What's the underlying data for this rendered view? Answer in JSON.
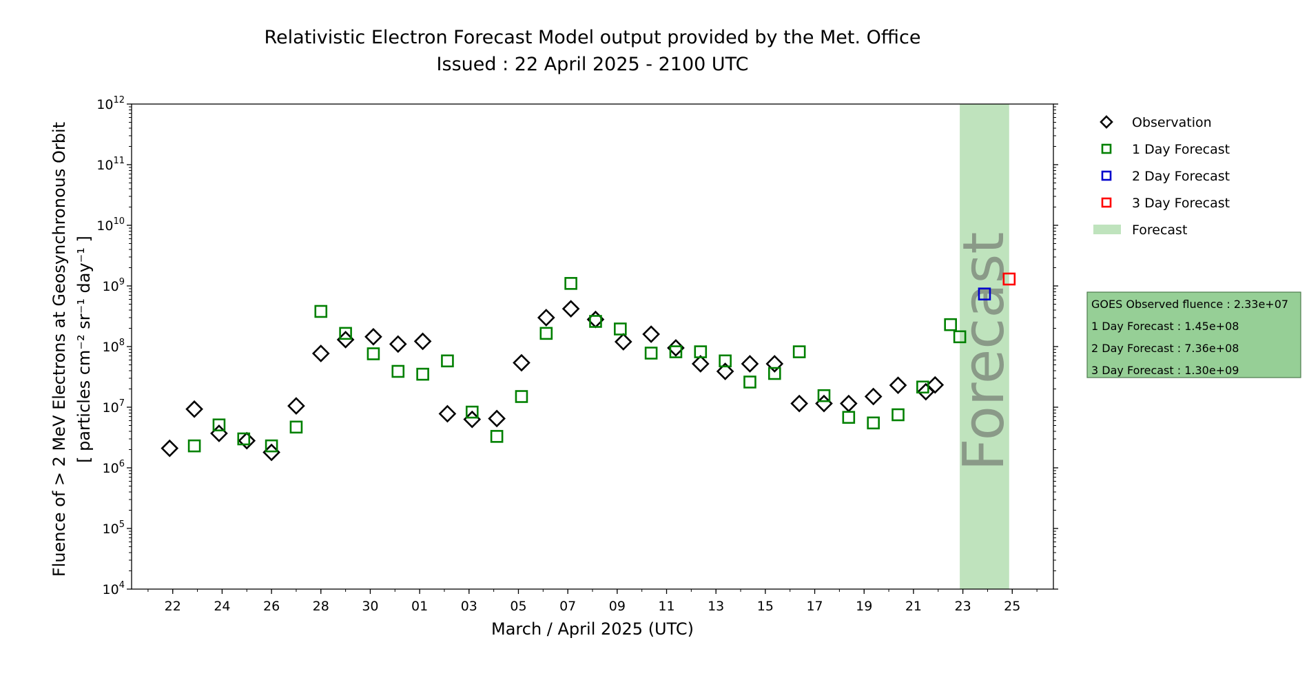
{
  "chart_data": {
    "type": "scatter",
    "title": "Relativistic Electron Forecast Model output provided by the Met. Office",
    "subtitle": "Issued : 22 April 2025 - 2100 UTC",
    "xlabel": "March / April 2025 (UTC)",
    "ylabel_line1": "Fluence of > 2 MeV Electrons at Geosynchronous Orbit",
    "ylabel_line2": "[ particles cm⁻² sr⁻¹ day⁻¹ ]",
    "yscale": "log",
    "ylim": [
      10000,
      1000000000000
    ],
    "xlim": [
      "2025-03-20T08:00",
      "2025-04-26T16:00"
    ],
    "y_ticks": [
      {
        "value": 10000,
        "base": "10",
        "exp": "4"
      },
      {
        "value": 100000,
        "base": "10",
        "exp": "5"
      },
      {
        "value": 1000000,
        "base": "10",
        "exp": "6"
      },
      {
        "value": 10000000,
        "base": "10",
        "exp": "7"
      },
      {
        "value": 100000000,
        "base": "10",
        "exp": "8"
      },
      {
        "value": 1000000000,
        "base": "10",
        "exp": "9"
      },
      {
        "value": 10000000000,
        "base": "10",
        "exp": "10"
      },
      {
        "value": 100000000000,
        "base": "10",
        "exp": "11"
      },
      {
        "value": 1000000000000,
        "base": "10",
        "exp": "12"
      }
    ],
    "x_ticks": [
      {
        "date": "2025-03-22",
        "label": "22"
      },
      {
        "date": "2025-03-24",
        "label": "24"
      },
      {
        "date": "2025-03-26",
        "label": "26"
      },
      {
        "date": "2025-03-28",
        "label": "28"
      },
      {
        "date": "2025-03-30",
        "label": "30"
      },
      {
        "date": "2025-04-01",
        "label": "01"
      },
      {
        "date": "2025-04-03",
        "label": "03"
      },
      {
        "date": "2025-04-05",
        "label": "05"
      },
      {
        "date": "2025-04-07",
        "label": "07"
      },
      {
        "date": "2025-04-09",
        "label": "09"
      },
      {
        "date": "2025-04-11",
        "label": "11"
      },
      {
        "date": "2025-04-13",
        "label": "13"
      },
      {
        "date": "2025-04-15",
        "label": "15"
      },
      {
        "date": "2025-04-17",
        "label": "17"
      },
      {
        "date": "2025-04-19",
        "label": "19"
      },
      {
        "date": "2025-04-21",
        "label": "21"
      },
      {
        "date": "2025-04-23",
        "label": "23"
      },
      {
        "date": "2025-04-25",
        "label": "25"
      }
    ],
    "forecast_band": {
      "start": "2025-04-22T21:00",
      "end": "2025-04-24T21:00",
      "label": "Forecast",
      "color": "#bfe3bd"
    },
    "series": [
      {
        "name": "Observation",
        "marker": "diamond",
        "color": "#000000",
        "points": [
          {
            "x": "2025-03-21T21:00",
            "y": 2100000
          },
          {
            "x": "2025-03-22T21:00",
            "y": 9300000
          },
          {
            "x": "2025-03-23T21:00",
            "y": 3700000
          },
          {
            "x": "2025-03-25T00:00",
            "y": 2800000
          },
          {
            "x": "2025-03-26T00:00",
            "y": 1800000
          },
          {
            "x": "2025-03-27T00:00",
            "y": 10500000
          },
          {
            "x": "2025-03-28T00:00",
            "y": 77000000
          },
          {
            "x": "2025-03-29T00:00",
            "y": 130000000
          },
          {
            "x": "2025-03-30T03:00",
            "y": 145000000
          },
          {
            "x": "2025-03-31T03:00",
            "y": 110000000
          },
          {
            "x": "2025-04-01T03:00",
            "y": 122000000
          },
          {
            "x": "2025-04-02T03:00",
            "y": 7800000
          },
          {
            "x": "2025-04-03T03:00",
            "y": 6300000
          },
          {
            "x": "2025-04-04T03:00",
            "y": 6500000
          },
          {
            "x": "2025-04-05T03:00",
            "y": 54000000
          },
          {
            "x": "2025-04-06T03:00",
            "y": 300000000
          },
          {
            "x": "2025-04-07T03:00",
            "y": 420000000
          },
          {
            "x": "2025-04-08T03:00",
            "y": 280000000
          },
          {
            "x": "2025-04-09T06:00",
            "y": 120000000
          },
          {
            "x": "2025-04-10T09:00",
            "y": 160000000
          },
          {
            "x": "2025-04-11T09:00",
            "y": 95000000
          },
          {
            "x": "2025-04-12T09:00",
            "y": 52000000
          },
          {
            "x": "2025-04-13T09:00",
            "y": 39000000
          },
          {
            "x": "2025-04-14T09:00",
            "y": 52000000
          },
          {
            "x": "2025-04-15T09:00",
            "y": 52000000
          },
          {
            "x": "2025-04-16T09:00",
            "y": 11500000
          },
          {
            "x": "2025-04-17T09:00",
            "y": 11500000
          },
          {
            "x": "2025-04-18T09:00",
            "y": 11500000
          },
          {
            "x": "2025-04-19T09:00",
            "y": 15000000
          },
          {
            "x": "2025-04-20T09:00",
            "y": 23000000
          },
          {
            "x": "2025-04-21T12:00",
            "y": 18000000
          },
          {
            "x": "2025-04-21T21:00",
            "y": 23300000
          }
        ]
      },
      {
        "name": "1 Day Forecast",
        "marker": "square",
        "color": "#008000",
        "points": [
          {
            "x": "2025-03-22T21:00",
            "y": 2300000
          },
          {
            "x": "2025-03-23T21:00",
            "y": 5100000
          },
          {
            "x": "2025-03-24T21:00",
            "y": 3000000
          },
          {
            "x": "2025-03-26T00:00",
            "y": 2300000
          },
          {
            "x": "2025-03-27T00:00",
            "y": 4700000
          },
          {
            "x": "2025-03-28T00:00",
            "y": 380000000
          },
          {
            "x": "2025-03-29T00:00",
            "y": 165000000
          },
          {
            "x": "2025-03-30T03:00",
            "y": 76000000
          },
          {
            "x": "2025-03-31T03:00",
            "y": 39000000
          },
          {
            "x": "2025-04-01T03:00",
            "y": 35000000
          },
          {
            "x": "2025-04-02T03:00",
            "y": 58000000
          },
          {
            "x": "2025-04-03T03:00",
            "y": 8300000
          },
          {
            "x": "2025-04-04T03:00",
            "y": 3300000
          },
          {
            "x": "2025-04-05T03:00",
            "y": 15000000
          },
          {
            "x": "2025-04-06T03:00",
            "y": 165000000
          },
          {
            "x": "2025-04-07T03:00",
            "y": 1100000000
          },
          {
            "x": "2025-04-08T03:00",
            "y": 260000000
          },
          {
            "x": "2025-04-09T03:00",
            "y": 195000000
          },
          {
            "x": "2025-04-10T09:00",
            "y": 78000000
          },
          {
            "x": "2025-04-11T09:00",
            "y": 82000000
          },
          {
            "x": "2025-04-12T09:00",
            "y": 82000000
          },
          {
            "x": "2025-04-13T09:00",
            "y": 58000000
          },
          {
            "x": "2025-04-14T09:00",
            "y": 26000000
          },
          {
            "x": "2025-04-15T09:00",
            "y": 36000000
          },
          {
            "x": "2025-04-16T09:00",
            "y": 82000000
          },
          {
            "x": "2025-04-17T09:00",
            "y": 15500000
          },
          {
            "x": "2025-04-18T09:00",
            "y": 6800000
          },
          {
            "x": "2025-04-19T09:00",
            "y": 5500000
          },
          {
            "x": "2025-04-20T09:00",
            "y": 7500000
          },
          {
            "x": "2025-04-21T09:00",
            "y": 21500000
          },
          {
            "x": "2025-04-22T12:00",
            "y": 230000000
          },
          {
            "x": "2025-04-22T21:00",
            "y": 145000000
          }
        ]
      },
      {
        "name": "2 Day Forecast",
        "marker": "square",
        "color": "#0000cc",
        "points": [
          {
            "x": "2025-04-23T21:00",
            "y": 736000000
          }
        ]
      },
      {
        "name": "3 Day Forecast",
        "marker": "square",
        "color": "#ff0000",
        "points": [
          {
            "x": "2025-04-24T21:00",
            "y": 1300000000
          }
        ]
      }
    ],
    "legend": {
      "placement": "right",
      "entries": [
        {
          "label": "Observation",
          "marker": "diamond",
          "color": "#000000"
        },
        {
          "label": "1 Day Forecast",
          "marker": "square",
          "color": "#008000"
        },
        {
          "label": "2 Day Forecast",
          "marker": "square",
          "color": "#0000cc"
        },
        {
          "label": "3 Day Forecast",
          "marker": "square",
          "color": "#ff0000"
        },
        {
          "label": "Forecast",
          "marker": "band",
          "color": "#bfe3bd"
        }
      ]
    },
    "info_box": {
      "background": "#96cf96",
      "lines": [
        "GOES Observed fluence : 2.33e+07",
        "1 Day Forecast : 1.45e+08",
        "2 Day Forecast : 7.36e+08",
        "3 Day Forecast : 1.30e+09"
      ]
    }
  }
}
